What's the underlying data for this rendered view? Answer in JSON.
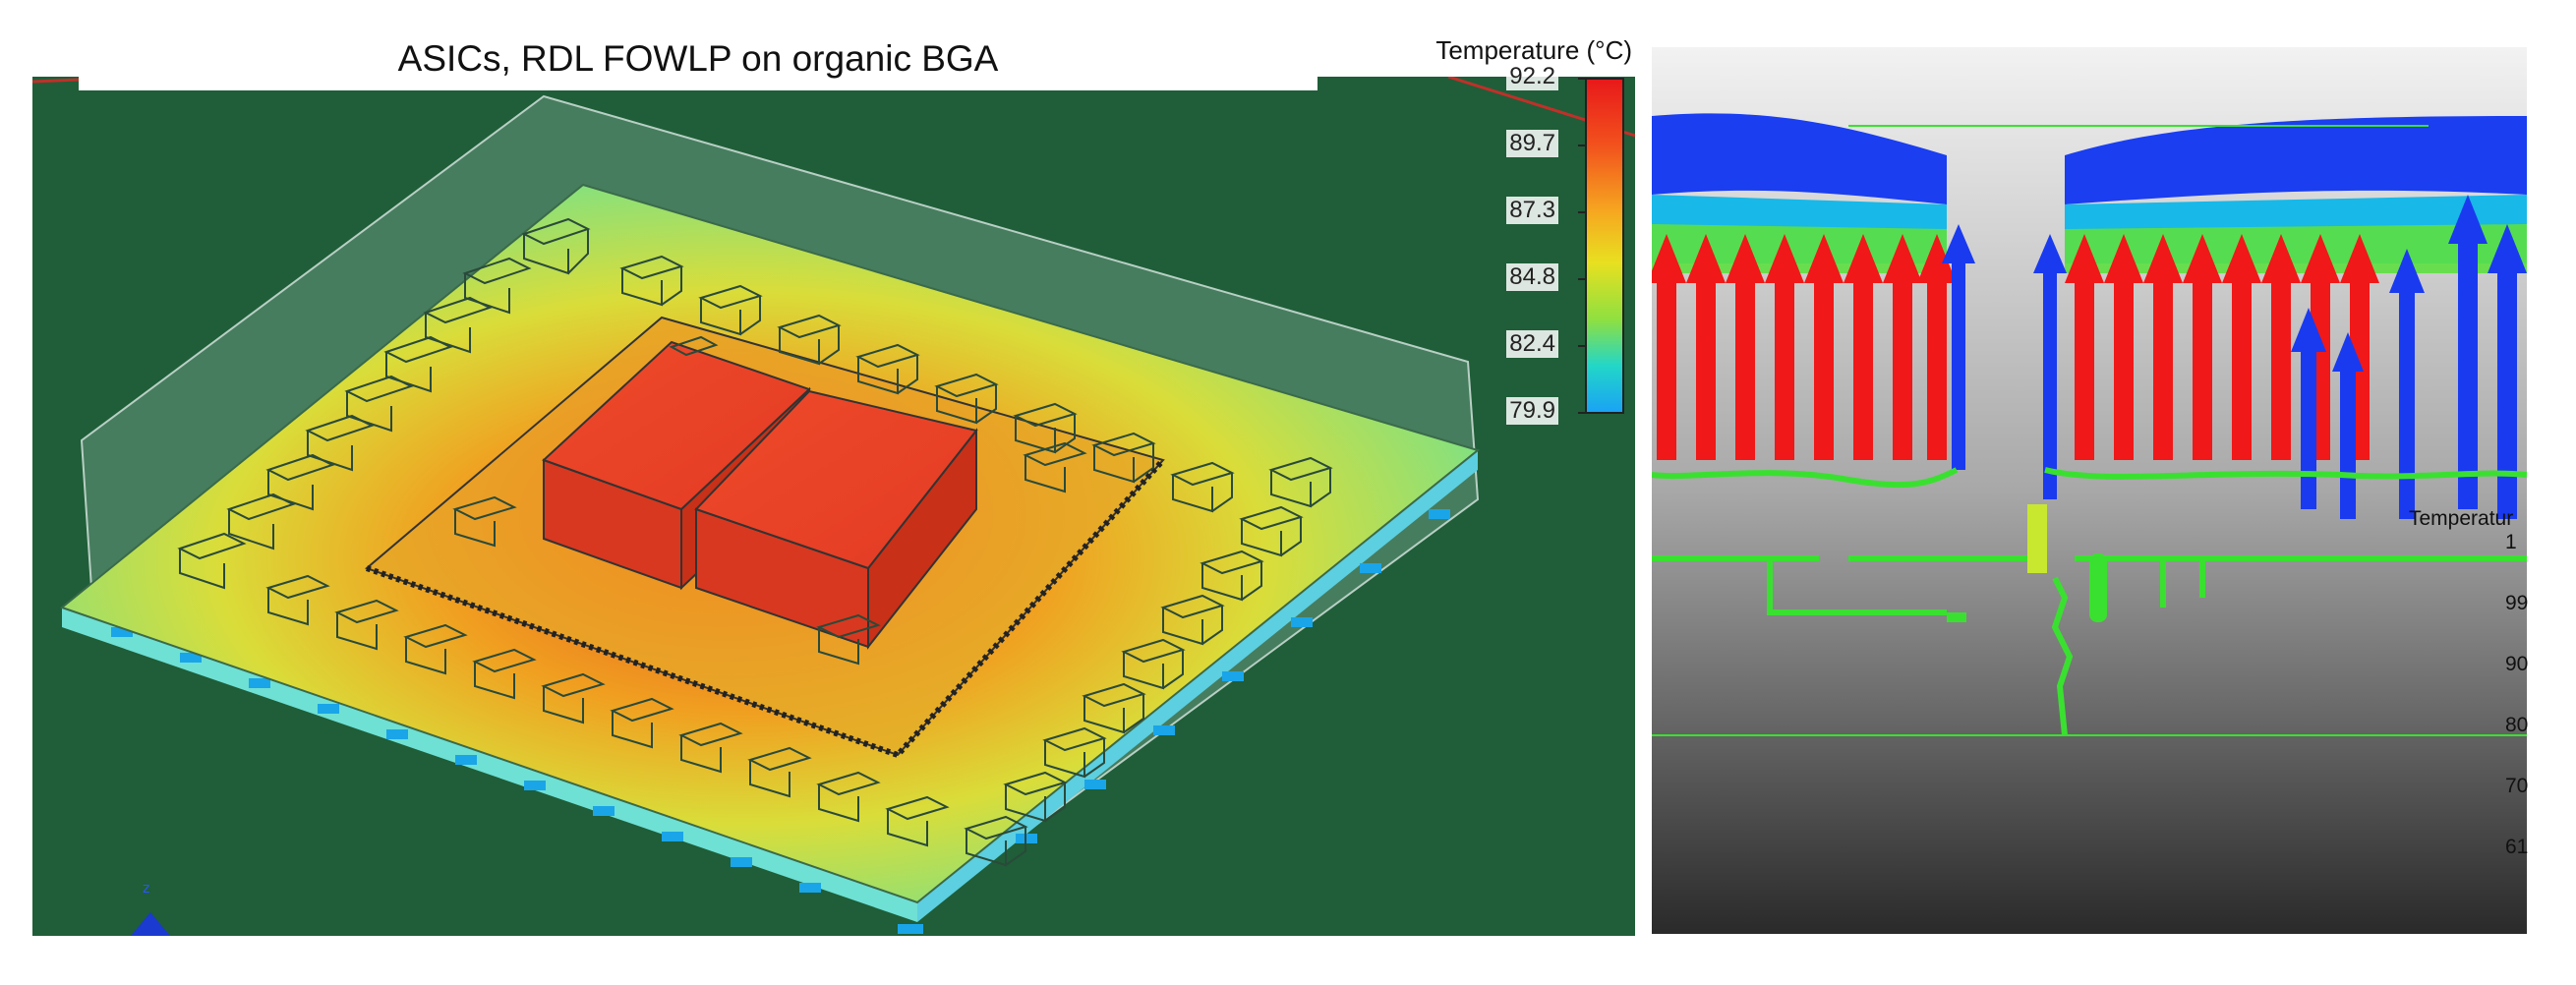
{
  "left": {
    "title": "ASICs, RDL FOWLP on organic BGA",
    "legend": {
      "title": "Temperature (°C)",
      "ticks": [
        "92.2",
        "89.7",
        "87.3",
        "84.8",
        "82.4",
        "79.9"
      ],
      "colors": [
        "#e8281e",
        "#f47b20",
        "#f6d31f",
        "#9fe03a",
        "#2fd6b8",
        "#12a6f2"
      ]
    }
  },
  "right": {
    "legend_title": "Temperatur",
    "ticks": [
      "1",
      "99",
      "90",
      "80",
      "70",
      "61"
    ]
  }
}
